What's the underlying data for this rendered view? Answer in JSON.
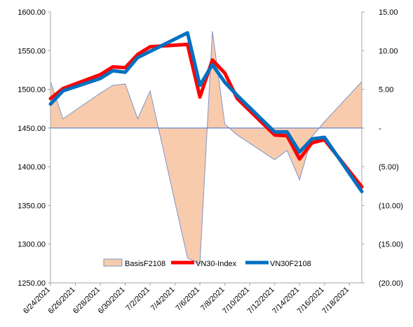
{
  "chart_data": {
    "type": "line",
    "x": [
      "6/24/2021",
      "6/25/2021",
      "6/28/2021",
      "6/29/2021",
      "6/30/2021",
      "7/1/2021",
      "7/2/2021",
      "7/5/2021",
      "7/6/2021",
      "7/7/2021",
      "7/8/2021",
      "7/9/2021",
      "7/12/2021",
      "7/13/2021",
      "7/14/2021",
      "7/15/2021",
      "7/16/2021",
      "7/19/2021"
    ],
    "x_tick_labels": [
      "6/24/2021",
      "6/26/2021",
      "6/28/2021",
      "6/30/2021",
      "7/2/2021",
      "7/4/2021",
      "7/6/2021",
      "7/8/2021",
      "7/10/2021",
      "7/12/2021",
      "7/14/2021",
      "7/16/2021",
      "7/18/2021"
    ],
    "series": [
      {
        "name": "BasisF2108",
        "kind": "area",
        "axis": "right",
        "color": "#f8cbad",
        "stroke": "#7f96c8",
        "values": [
          6,
          1.2,
          4.5,
          5.5,
          5.7,
          1.2,
          4.8,
          -16.8,
          -17.5,
          12.5,
          0.5,
          -0.9,
          -4.1,
          -2.9,
          -6.7,
          -1.1,
          0.8,
          6.0
        ]
      },
      {
        "name": "VN30-Index",
        "kind": "line",
        "axis": "left",
        "color": "#ff0000",
        "values": [
          1488,
          1501,
          1519,
          1529,
          1528,
          1545,
          1555,
          1558,
          1490,
          1538,
          1521,
          1488,
          1441,
          1440,
          1410,
          1431,
          1435,
          1374
        ]
      },
      {
        "name": "VN30F2108",
        "kind": "line",
        "axis": "left",
        "color": "#0070c0",
        "values": [
          1481,
          1498,
          1514,
          1524,
          1522,
          1541,
          1549,
          1573,
          1505,
          1532,
          1509,
          1492,
          1445,
          1445,
          1419,
          1436,
          1438,
          1368
        ]
      }
    ],
    "y_left": {
      "ylim": [
        1250,
        1600
      ],
      "ticks": [
        "1250.00",
        "1300.00",
        "1350.00",
        "1400.00",
        "1450.00",
        "1500.00",
        "1550.00",
        "1600.00"
      ]
    },
    "y_right": {
      "ylim": [
        -20,
        15
      ],
      "ticks": [
        "(20.00)",
        "(15.00)",
        "(10.00)",
        "(5.00)",
        "-",
        "5.00",
        "10.00",
        "15.00"
      ]
    },
    "legend_position": "bottom-center",
    "grid": false
  }
}
